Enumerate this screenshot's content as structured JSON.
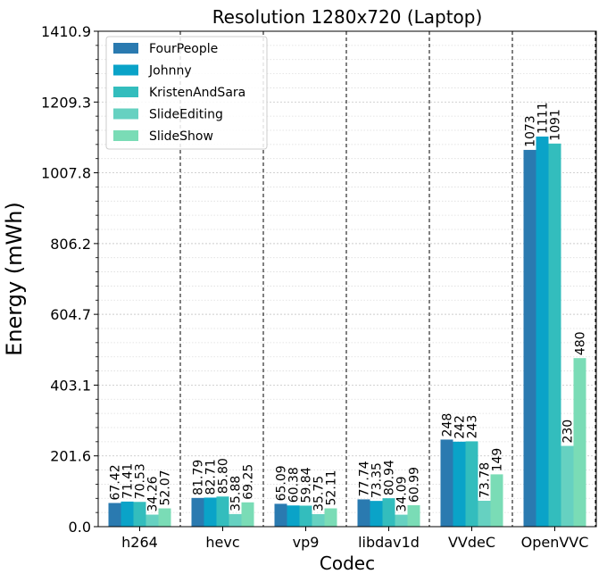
{
  "chart_data": {
    "type": "bar",
    "title": "Resolution 1280x720 (Laptop)",
    "xlabel": "Codec",
    "ylabel": "Energy (mWh)",
    "categories": [
      "h264",
      "hevc",
      "vp9",
      "libdav1d",
      "VVdeC",
      "OpenVVC"
    ],
    "ylim": [
      0,
      1410.9
    ],
    "yticks": [
      0.0,
      201.6,
      403.1,
      604.7,
      806.2,
      1007.8,
      1209.3,
      1410.9
    ],
    "ytick_labels": [
      "0.0",
      "201.6",
      "403.1",
      "604.7",
      "806.2",
      "1007.8",
      "1209.3",
      "1410.9"
    ],
    "grid": true,
    "legend_position": "top-left",
    "series": [
      {
        "name": "FourPeople",
        "color": "#2a7ab0",
        "values": [
          67.42,
          81.79,
          65.09,
          77.74,
          248,
          1073
        ],
        "labels": [
          "67.42",
          "81.79",
          "65.09",
          "77.74",
          "248",
          "1073"
        ]
      },
      {
        "name": "Johnny",
        "color": "#0aa3c8",
        "values": [
          71.41,
          82.71,
          60.38,
          73.35,
          242,
          1111
        ],
        "labels": [
          "71.41",
          "82.71",
          "60.38",
          "73.35",
          "242",
          "1111"
        ]
      },
      {
        "name": "KristenAndSara",
        "color": "#33bdbd",
        "values": [
          70.53,
          85.8,
          59.84,
          80.94,
          243,
          1091
        ],
        "labels": [
          "70.53",
          "85.80",
          "59.84",
          "80.94",
          "243",
          "1091"
        ]
      },
      {
        "name": "SlideEditing",
        "color": "#66d1c1",
        "values": [
          34.26,
          35.88,
          35.75,
          34.09,
          73.78,
          230
        ],
        "labels": [
          "34.26",
          "35.88",
          "35.75",
          "34.09",
          "73.78",
          "230"
        ]
      },
      {
        "name": "SlideShow",
        "color": "#7adcb6",
        "values": [
          52.07,
          69.25,
          52.11,
          60.99,
          149,
          480
        ],
        "labels": [
          "52.07",
          "69.25",
          "52.11",
          "60.99",
          "149",
          "480"
        ]
      }
    ]
  }
}
